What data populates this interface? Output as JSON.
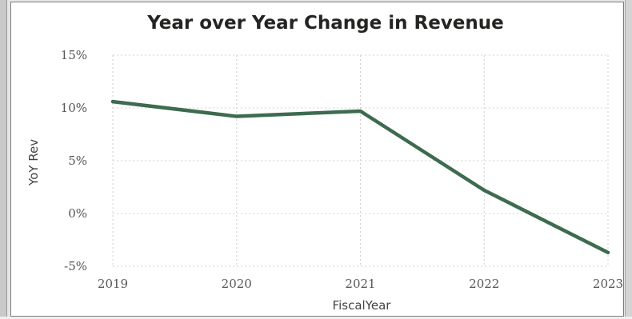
{
  "chart_data": {
    "type": "line",
    "title": "Year over Year Change in Revenue",
    "xlabel": "FiscalYear",
    "ylabel": "YoY Rev",
    "categories": [
      "2019",
      "2020",
      "2021",
      "2022",
      "2023"
    ],
    "series": [
      {
        "values": [
          10.6,
          9.2,
          9.7,
          2.2,
          -3.7
        ],
        "color": "#3d6b4f"
      }
    ],
    "ylim": [
      -5,
      15
    ],
    "yticks": [
      15,
      10,
      5,
      0,
      -5
    ],
    "ytick_labels": [
      "15%",
      "10%",
      "5%",
      "0%",
      "-5%"
    ],
    "grid": true,
    "legend": "none"
  },
  "colors": {
    "line": "#3d6b4f",
    "grid": "#d0d0d0"
  }
}
